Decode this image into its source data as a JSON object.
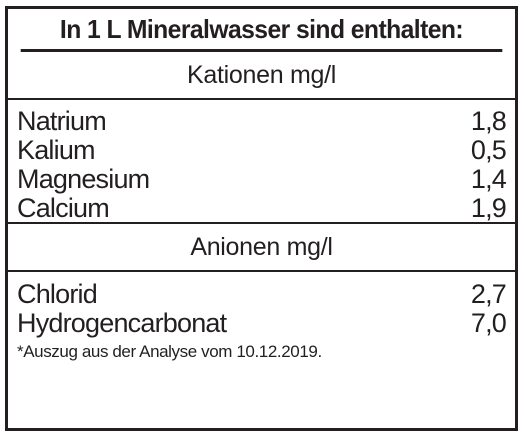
{
  "title": "In 1 L Mineralwasser sind enthalten:",
  "cations": {
    "header": "Kationen mg/l",
    "rows": [
      {
        "name": "Natrium",
        "value": "1,8"
      },
      {
        "name": "Kalium",
        "value": "0,5"
      },
      {
        "name": "Magnesium",
        "value": "1,4"
      },
      {
        "name": "Calcium",
        "value": "1,9"
      }
    ]
  },
  "anions": {
    "header": "Anionen mg/l",
    "rows": [
      {
        "name": "Chlorid",
        "value": "2,7"
      },
      {
        "name": "Hydrogencarbonat",
        "value": "7,0"
      }
    ]
  },
  "footnote": "*Auszug aus der Analyse vom 10.12.2019."
}
